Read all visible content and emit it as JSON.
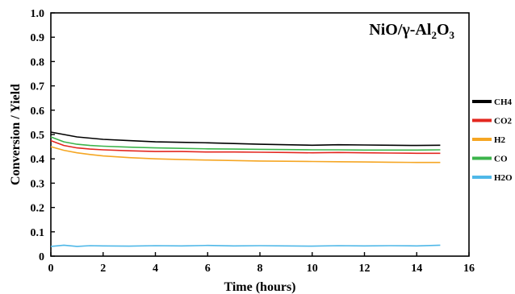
{
  "chart_data": {
    "type": "line",
    "title_parts": [
      "NiO/γ-Al",
      "2",
      "O",
      "3"
    ],
    "xlabel": "Time (hours)",
    "ylabel": "Conversion / Yield",
    "xlim": [
      0,
      16
    ],
    "ylim": [
      0,
      1.0
    ],
    "x_ticks": [
      "0",
      "2",
      "4",
      "6",
      "8",
      "10",
      "12",
      "14",
      "16"
    ],
    "y_ticks": [
      "0",
      "0.1",
      "0.2",
      "0.3",
      "0.4",
      "0.5",
      "0.6",
      "0.7",
      "0.8",
      "0.9",
      "1.0"
    ],
    "grid": false,
    "legend_position": "right",
    "series": [
      {
        "name": "CH4",
        "color": "#000000",
        "x": [
          0,
          0.5,
          1,
          1.5,
          2,
          3,
          4,
          5,
          6,
          7,
          8,
          9,
          10,
          11,
          12,
          13,
          14,
          14.9
        ],
        "y": [
          0.51,
          0.5,
          0.49,
          0.485,
          0.48,
          0.475,
          0.47,
          0.468,
          0.466,
          0.463,
          0.46,
          0.458,
          0.456,
          0.458,
          0.457,
          0.456,
          0.455,
          0.456
        ]
      },
      {
        "name": "CO2",
        "color": "#e3271f",
        "x": [
          0,
          0.5,
          1,
          1.5,
          2,
          3,
          4,
          5,
          6,
          7,
          8,
          9,
          10,
          11,
          12,
          13,
          14,
          14.9
        ],
        "y": [
          0.475,
          0.455,
          0.445,
          0.44,
          0.437,
          0.433,
          0.43,
          0.43,
          0.428,
          0.428,
          0.427,
          0.426,
          0.425,
          0.426,
          0.425,
          0.424,
          0.423,
          0.423
        ]
      },
      {
        "name": "H2",
        "color": "#f5a623",
        "x": [
          0,
          0.5,
          1,
          1.5,
          2,
          3,
          4,
          5,
          6,
          7,
          8,
          9,
          10,
          11,
          12,
          13,
          14,
          14.9
        ],
        "y": [
          0.45,
          0.435,
          0.425,
          0.418,
          0.412,
          0.405,
          0.4,
          0.397,
          0.395,
          0.393,
          0.391,
          0.39,
          0.389,
          0.388,
          0.387,
          0.386,
          0.385,
          0.385
        ]
      },
      {
        "name": "CO",
        "color": "#3cb44b",
        "x": [
          0,
          0.5,
          1,
          1.5,
          2,
          3,
          4,
          5,
          6,
          7,
          8,
          9,
          10,
          11,
          12,
          13,
          14,
          14.9
        ],
        "y": [
          0.49,
          0.47,
          0.46,
          0.455,
          0.452,
          0.448,
          0.445,
          0.443,
          0.441,
          0.44,
          0.439,
          0.438,
          0.437,
          0.437,
          0.436,
          0.436,
          0.436,
          0.437
        ]
      },
      {
        "name": "H2O",
        "color": "#4fb8e8",
        "x": [
          0,
          0.5,
          1,
          1.5,
          2,
          3,
          4,
          5,
          6,
          7,
          8,
          9,
          10,
          11,
          12,
          13,
          14,
          14.9
        ],
        "y": [
          0.04,
          0.045,
          0.04,
          0.043,
          0.042,
          0.041,
          0.043,
          0.042,
          0.044,
          0.042,
          0.043,
          0.042,
          0.041,
          0.043,
          0.042,
          0.043,
          0.042,
          0.045
        ]
      }
    ]
  }
}
